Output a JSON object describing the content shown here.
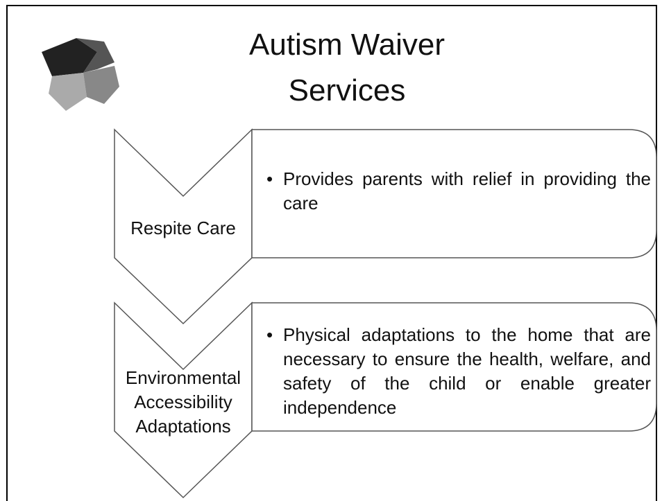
{
  "title_lines": [
    "Autism Waiver",
    "Services"
  ],
  "items": [
    {
      "label": "Respite Care",
      "text": "Provides parents with relief in providing the care"
    },
    {
      "label": "Environmental Accessibility Adaptations",
      "text": "Physical adaptations to the home that are necessary to ensure the health, welfare, and safety of the child or enable greater independence"
    }
  ]
}
